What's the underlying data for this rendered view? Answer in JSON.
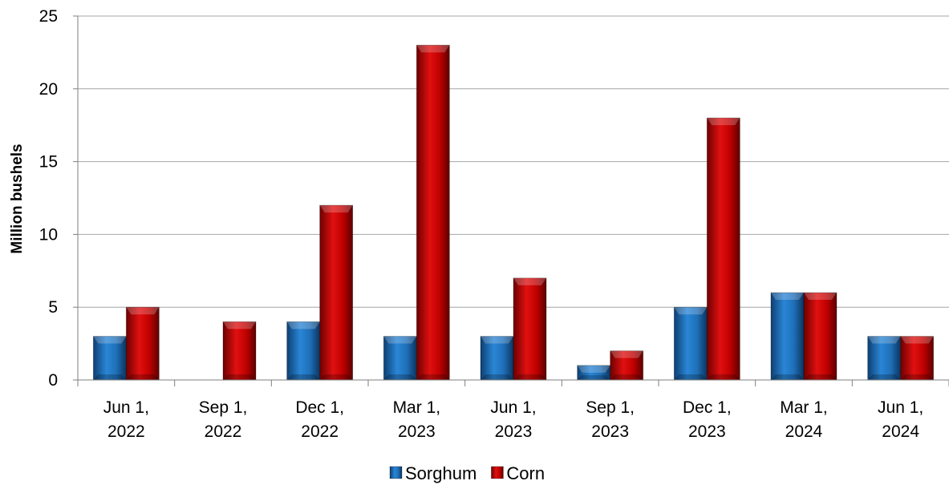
{
  "chart_data": {
    "type": "bar",
    "categories": [
      [
        "Jun 1,",
        "2022"
      ],
      [
        "Sep 1,",
        "2022"
      ],
      [
        "Dec 1,",
        "2022"
      ],
      [
        "Mar 1,",
        "2023"
      ],
      [
        "Jun 1,",
        "2023"
      ],
      [
        "Sep 1,",
        "2023"
      ],
      [
        "Dec 1,",
        "2023"
      ],
      [
        "Mar 1,",
        "2024"
      ],
      [
        "Jun 1,",
        "2024"
      ]
    ],
    "series": [
      {
        "name": "Sorghum",
        "color": "#1f6fb8",
        "values": [
          3,
          0,
          4,
          3,
          3,
          1,
          5,
          6,
          3
        ]
      },
      {
        "name": "Corn",
        "color": "#c00000",
        "values": [
          5,
          4,
          12,
          23,
          7,
          2,
          18,
          6,
          3
        ]
      }
    ],
    "xlabel": "",
    "ylabel": "Million bushels",
    "ylim": [
      0,
      25
    ],
    "yticks": [
      0,
      5,
      10,
      15,
      20,
      25
    ],
    "grid": true,
    "legend_position": "bottom"
  }
}
